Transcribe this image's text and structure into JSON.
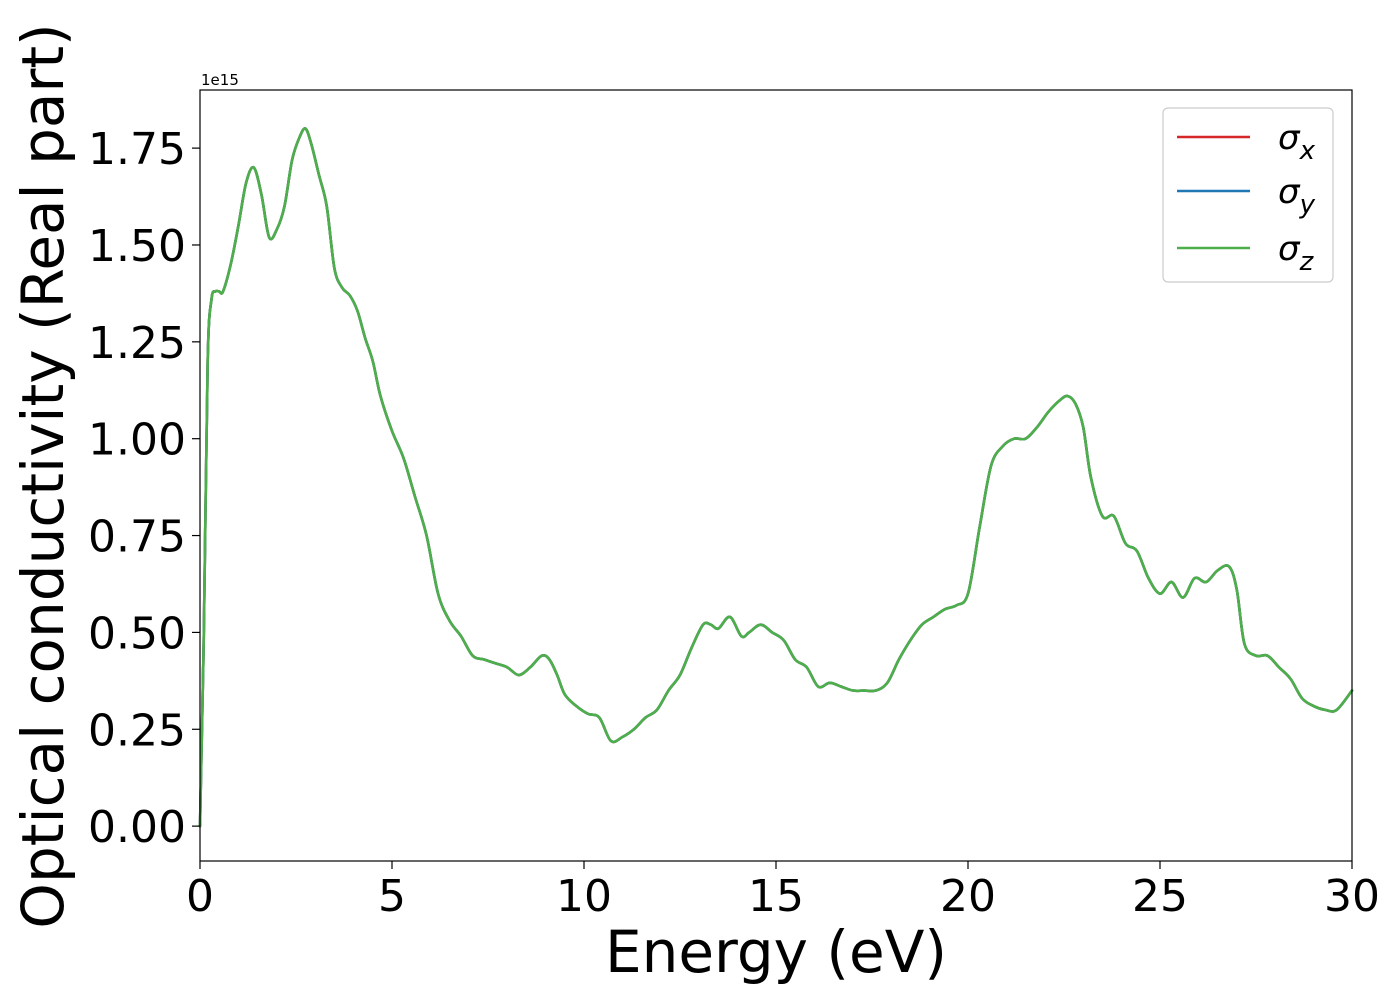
{
  "chart_data": {
    "type": "line",
    "title": "",
    "xlabel": "Energy (eV)",
    "ylabel": "Optical conductivity (Real part)",
    "y_offset_label": "1e15",
    "xlim": [
      0,
      30
    ],
    "ylim": [
      -0.09,
      1.9
    ],
    "x_ticks": [
      0,
      5,
      10,
      15,
      20,
      25,
      30
    ],
    "x_tick_labels": [
      "0",
      "5",
      "10",
      "15",
      "20",
      "25",
      "30"
    ],
    "y_ticks": [
      0,
      0.25,
      0.5,
      0.75,
      1.0,
      1.25,
      1.5,
      1.75
    ],
    "y_tick_labels": [
      "0.00",
      "0.25",
      "0.50",
      "0.75",
      "1.00",
      "1.25",
      "1.50",
      "1.75"
    ],
    "grid": false,
    "legend_position": "top-right",
    "x": [
      0,
      0.1,
      0.2,
      0.3,
      0.4,
      0.5,
      0.6,
      0.8,
      1.0,
      1.2,
      1.4,
      1.6,
      1.8,
      2.0,
      2.2,
      2.4,
      2.6,
      2.75,
      2.9,
      3.1,
      3.3,
      3.5,
      3.7,
      3.9,
      4.1,
      4.3,
      4.5,
      4.7,
      5.0,
      5.3,
      5.6,
      5.9,
      6.2,
      6.5,
      6.8,
      7.1,
      7.4,
      7.7,
      8.0,
      8.3,
      8.6,
      8.9,
      9.1,
      9.3,
      9.5,
      9.8,
      10.1,
      10.4,
      10.7,
      11.0,
      11.3,
      11.6,
      11.9,
      12.2,
      12.5,
      12.8,
      13.1,
      13.3,
      13.5,
      13.8,
      14.1,
      14.3,
      14.6,
      14.9,
      15.2,
      15.5,
      15.8,
      16.1,
      16.4,
      16.7,
      17.0,
      17.3,
      17.6,
      17.9,
      18.2,
      18.5,
      18.8,
      19.1,
      19.4,
      19.7,
      20.0,
      20.3,
      20.6,
      20.9,
      21.2,
      21.5,
      21.8,
      22.1,
      22.4,
      22.6,
      22.8,
      23.0,
      23.2,
      23.5,
      23.8,
      24.1,
      24.4,
      24.7,
      25.0,
      25.3,
      25.6,
      25.9,
      26.2,
      26.5,
      26.8,
      27.0,
      27.2,
      27.5,
      27.8,
      28.1,
      28.4,
      28.7,
      29.0,
      29.3,
      29.6,
      30.0
    ],
    "series": [
      {
        "name": "σx",
        "color": "#d62728",
        "values": [
          0.0,
          0.5,
          1.2,
          1.36,
          1.38,
          1.38,
          1.38,
          1.45,
          1.55,
          1.66,
          1.7,
          1.63,
          1.52,
          1.54,
          1.6,
          1.72,
          1.78,
          1.8,
          1.76,
          1.68,
          1.6,
          1.44,
          1.39,
          1.37,
          1.33,
          1.26,
          1.2,
          1.11,
          1.02,
          0.95,
          0.85,
          0.75,
          0.6,
          0.53,
          0.49,
          0.44,
          0.43,
          0.42,
          0.41,
          0.39,
          0.41,
          0.44,
          0.43,
          0.39,
          0.34,
          0.31,
          0.29,
          0.28,
          0.22,
          0.23,
          0.25,
          0.28,
          0.3,
          0.35,
          0.39,
          0.46,
          0.52,
          0.52,
          0.51,
          0.54,
          0.49,
          0.5,
          0.52,
          0.5,
          0.48,
          0.43,
          0.41,
          0.36,
          0.37,
          0.36,
          0.35,
          0.35,
          0.35,
          0.37,
          0.43,
          0.48,
          0.52,
          0.54,
          0.56,
          0.57,
          0.6,
          0.77,
          0.93,
          0.98,
          1.0,
          1.0,
          1.03,
          1.07,
          1.1,
          1.11,
          1.09,
          1.03,
          0.9,
          0.8,
          0.8,
          0.73,
          0.71,
          0.64,
          0.6,
          0.63,
          0.59,
          0.64,
          0.63,
          0.66,
          0.67,
          0.61,
          0.47,
          0.44,
          0.44,
          0.41,
          0.38,
          0.33,
          0.31,
          0.3,
          0.3,
          0.35
        ]
      },
      {
        "name": "σy",
        "color": "#1f77b4",
        "values": [
          0.0,
          0.5,
          1.2,
          1.36,
          1.38,
          1.38,
          1.38,
          1.45,
          1.55,
          1.66,
          1.7,
          1.63,
          1.52,
          1.54,
          1.6,
          1.72,
          1.78,
          1.8,
          1.76,
          1.68,
          1.6,
          1.44,
          1.39,
          1.37,
          1.33,
          1.26,
          1.2,
          1.11,
          1.02,
          0.95,
          0.85,
          0.75,
          0.6,
          0.53,
          0.49,
          0.44,
          0.43,
          0.42,
          0.41,
          0.39,
          0.41,
          0.44,
          0.43,
          0.39,
          0.34,
          0.31,
          0.29,
          0.28,
          0.22,
          0.23,
          0.25,
          0.28,
          0.3,
          0.35,
          0.39,
          0.46,
          0.52,
          0.52,
          0.51,
          0.54,
          0.49,
          0.5,
          0.52,
          0.5,
          0.48,
          0.43,
          0.41,
          0.36,
          0.37,
          0.36,
          0.35,
          0.35,
          0.35,
          0.37,
          0.43,
          0.48,
          0.52,
          0.54,
          0.56,
          0.57,
          0.6,
          0.77,
          0.93,
          0.98,
          1.0,
          1.0,
          1.03,
          1.07,
          1.1,
          1.11,
          1.09,
          1.03,
          0.9,
          0.8,
          0.8,
          0.73,
          0.71,
          0.64,
          0.6,
          0.63,
          0.59,
          0.64,
          0.63,
          0.66,
          0.67,
          0.61,
          0.47,
          0.44,
          0.44,
          0.41,
          0.38,
          0.33,
          0.31,
          0.3,
          0.3,
          0.35
        ]
      },
      {
        "name": "σz",
        "color": "#4daf4a",
        "values": [
          0.0,
          0.5,
          1.2,
          1.36,
          1.38,
          1.38,
          1.38,
          1.45,
          1.55,
          1.66,
          1.7,
          1.63,
          1.52,
          1.54,
          1.6,
          1.72,
          1.78,
          1.8,
          1.76,
          1.68,
          1.6,
          1.44,
          1.39,
          1.37,
          1.33,
          1.26,
          1.2,
          1.11,
          1.02,
          0.95,
          0.85,
          0.75,
          0.6,
          0.53,
          0.49,
          0.44,
          0.43,
          0.42,
          0.41,
          0.39,
          0.41,
          0.44,
          0.43,
          0.39,
          0.34,
          0.31,
          0.29,
          0.28,
          0.22,
          0.23,
          0.25,
          0.28,
          0.3,
          0.35,
          0.39,
          0.46,
          0.52,
          0.52,
          0.51,
          0.54,
          0.49,
          0.5,
          0.52,
          0.5,
          0.48,
          0.43,
          0.41,
          0.36,
          0.37,
          0.36,
          0.35,
          0.35,
          0.35,
          0.37,
          0.43,
          0.48,
          0.52,
          0.54,
          0.56,
          0.57,
          0.6,
          0.77,
          0.93,
          0.98,
          1.0,
          1.0,
          1.03,
          1.07,
          1.1,
          1.11,
          1.09,
          1.03,
          0.9,
          0.8,
          0.8,
          0.73,
          0.71,
          0.64,
          0.6,
          0.63,
          0.59,
          0.64,
          0.63,
          0.66,
          0.67,
          0.61,
          0.47,
          0.44,
          0.44,
          0.41,
          0.38,
          0.33,
          0.31,
          0.3,
          0.3,
          0.35
        ]
      }
    ],
    "legend_labels": [
      {
        "symbol": "σ",
        "sub": "x"
      },
      {
        "symbol": "σ",
        "sub": "y"
      },
      {
        "symbol": "σ",
        "sub": "z"
      }
    ]
  }
}
